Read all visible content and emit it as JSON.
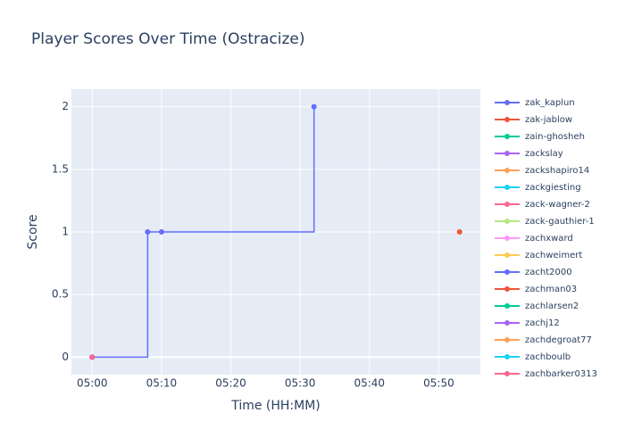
{
  "chart_data": {
    "type": "line",
    "title": "Player Scores Over Time (Ostracize)",
    "x_label": "Time (HH:MM)",
    "y_label": "Score",
    "line_shape": "hv",
    "grid": true,
    "xlim": [
      "04:57",
      "05:56"
    ],
    "xticks": [
      "05:00",
      "05:10",
      "05:20",
      "05:30",
      "05:40",
      "05:50"
    ],
    "ylim": [
      -0.14,
      2.14
    ],
    "yticks": [
      0,
      0.5,
      1,
      1.5,
      2
    ],
    "series": [
      {
        "name": "zak_kaplun",
        "color": "#636efa",
        "x": [
          "05:00",
          "05:08",
          "05:10",
          "05:32"
        ],
        "values": [
          0,
          1,
          1,
          2
        ]
      },
      {
        "name": "zak-jablow",
        "color": "#EF553B",
        "x": [
          "05:53"
        ],
        "values": [
          1
        ]
      },
      {
        "name": "zain-ghosheh",
        "color": "#00cc96",
        "x": [
          "05:00"
        ],
        "values": [
          0
        ]
      },
      {
        "name": "zackslay",
        "color": "#ab63fa",
        "x": [
          "05:00"
        ],
        "values": [
          0
        ]
      },
      {
        "name": "zackshapiro14",
        "color": "#FFA15A",
        "x": [
          "05:00"
        ],
        "values": [
          0
        ]
      },
      {
        "name": "zackgiesting",
        "color": "#19d3f3",
        "x": [
          "05:00"
        ],
        "values": [
          0
        ]
      },
      {
        "name": "zack-wagner-2",
        "color": "#FF6692",
        "x": [
          "05:00"
        ],
        "values": [
          0
        ]
      },
      {
        "name": "zack-gauthier-1",
        "color": "#B6E880",
        "x": [
          "05:00"
        ],
        "values": [
          0
        ]
      },
      {
        "name": "zachxward",
        "color": "#FF97FF",
        "x": [
          "05:00"
        ],
        "values": [
          0
        ]
      },
      {
        "name": "zachweimert",
        "color": "#FECB52",
        "x": [
          "05:00"
        ],
        "values": [
          0
        ]
      },
      {
        "name": "zacht2000",
        "color": "#636efa",
        "x": [
          "05:00"
        ],
        "values": [
          0
        ]
      },
      {
        "name": "zachman03",
        "color": "#EF553B",
        "x": [
          "05:00"
        ],
        "values": [
          0
        ]
      },
      {
        "name": "zachlarsen2",
        "color": "#00cc96",
        "x": [
          "05:00"
        ],
        "values": [
          0
        ]
      },
      {
        "name": "zachj12",
        "color": "#ab63fa",
        "x": [
          "05:00"
        ],
        "values": [
          0
        ]
      },
      {
        "name": "zachdegroat77",
        "color": "#FFA15A",
        "x": [
          "05:00"
        ],
        "values": [
          0
        ]
      },
      {
        "name": "zachboulb",
        "color": "#19d3f3",
        "x": [
          "05:00"
        ],
        "values": [
          0
        ]
      },
      {
        "name": "zachbarker0313",
        "color": "#FF6692",
        "x": [
          "05:00"
        ],
        "values": [
          0
        ]
      }
    ]
  }
}
